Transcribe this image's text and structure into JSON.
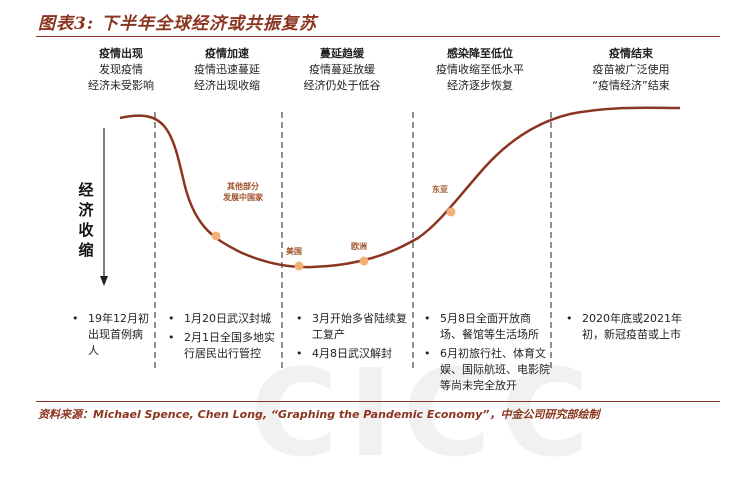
{
  "title": "图表3: 下半年全球经济或共振复苏",
  "y_axis_label": "经济收缩",
  "phases": [
    {
      "heading": "疫情出现",
      "lines": [
        "发现疫情",
        "经济未受影响"
      ]
    },
    {
      "heading": "疫情加速",
      "lines": [
        "疫情迅速蔓延",
        "经济出现收缩"
      ]
    },
    {
      "heading": "蔓延趋缓",
      "lines": [
        "疫情蔓延放缓",
        "经济仍处于低谷"
      ]
    },
    {
      "heading": "感染降至低位",
      "lines": [
        "疫情收缩至低水平",
        "经济逐步恢复"
      ]
    },
    {
      "heading": "疫情结束",
      "lines": [
        "疫苗被广泛使用",
        "“疫情经济”结束"
      ]
    }
  ],
  "markers": [
    {
      "label": "其他部分发展中国家",
      "label_lines": [
        "其他部分",
        "发展中国家"
      ]
    },
    {
      "label": "美国"
    },
    {
      "label": "欧洲"
    },
    {
      "label": "东亚"
    }
  ],
  "events": [
    [
      "19年12月初出现首例病人"
    ],
    [
      "1月20日武汉封城",
      "2月1日全国多地实行居民出行管控"
    ],
    [
      "3月开始多省陆续复工复产",
      "4月8日武汉解封"
    ],
    [
      "5月8日全面开放商场、餐馆等生活场所",
      "6月初旅行社、体育文娱、国际航班、电影院等尚未完全放开"
    ],
    [
      "2020年底或2021年初，新冠疫苗或上市"
    ]
  ],
  "source": "资料来源：Michael Spence, Chen Long, “Graphing the Pandemic Economy”，中金公司研究部绘制",
  "colors": {
    "accent": "#8b3520",
    "curve": "#8b3520",
    "marker": "#f0b27a",
    "divider": "#555555"
  }
}
